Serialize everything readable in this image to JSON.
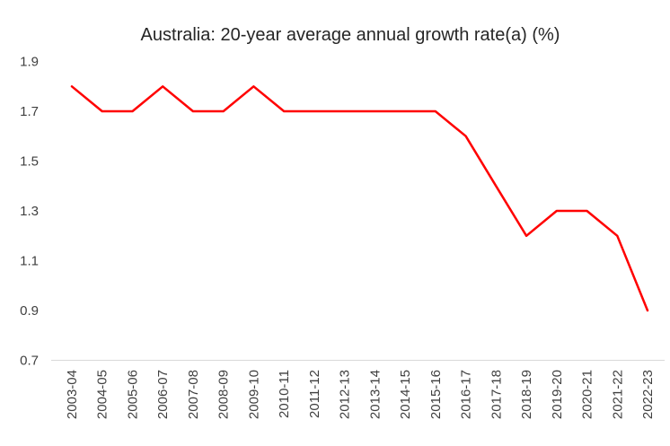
{
  "chart_data": {
    "type": "line",
    "title": "Australia: 20-year average annual growth rate(a) (%)",
    "categories": [
      "2003-04",
      "2004-05",
      "2005-06",
      "2006-07",
      "2007-08",
      "2008-09",
      "2009-10",
      "2010-11",
      "2011-12",
      "2012-13",
      "2013-14",
      "2014-15",
      "2015-16",
      "2016-17",
      "2017-18",
      "2018-19",
      "2019-20",
      "2020-21",
      "2021-22",
      "2022-23"
    ],
    "values": [
      1.8,
      1.7,
      1.7,
      1.8,
      1.7,
      1.7,
      1.8,
      1.7,
      1.7,
      1.7,
      1.7,
      1.7,
      1.7,
      1.6,
      1.4,
      1.2,
      1.3,
      1.3,
      1.2,
      0.9
    ],
    "xlabel": "",
    "ylabel": "",
    "ylim": [
      0.7,
      1.9
    ],
    "yticks": [
      0.7,
      0.9,
      1.1,
      1.3,
      1.5,
      1.7,
      1.9
    ],
    "grid": false,
    "legend": "none",
    "line_color": "#FF0000",
    "axis_line_color": "#D9D9D9",
    "tick_text_color": "#3F3F3F",
    "title_text_color": "#262626"
  }
}
